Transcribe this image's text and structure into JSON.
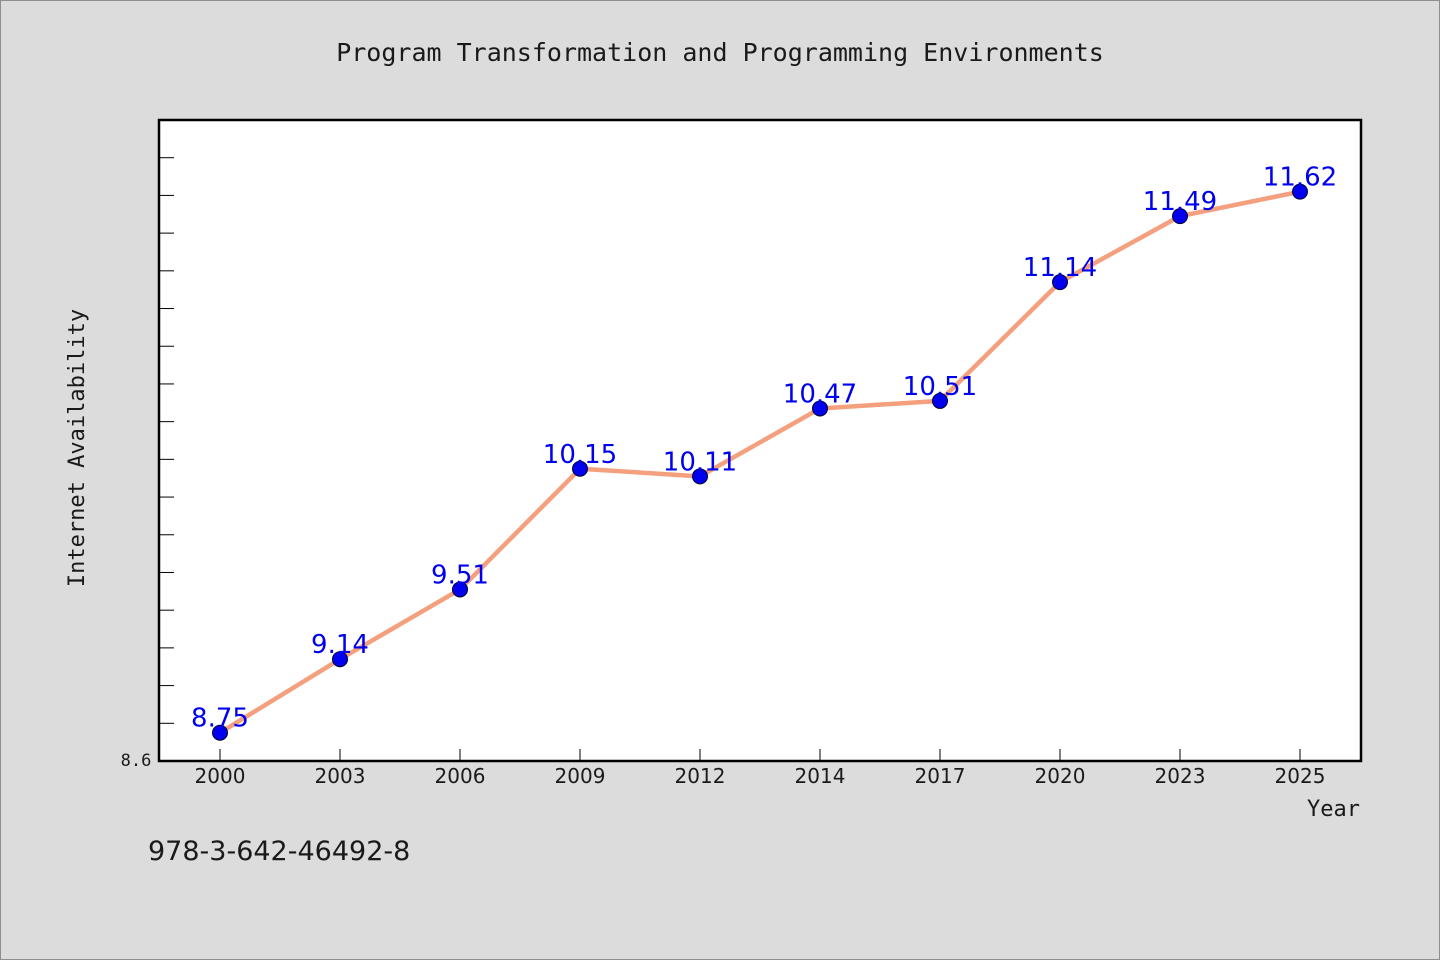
{
  "footer_code": "978-3-642-46492-8",
  "chart_data": {
    "type": "line",
    "title": "Program Transformation and Programming Environments",
    "xlabel": "Year",
    "ylabel": "Internet Availability",
    "categories": [
      "2000",
      "2003",
      "2006",
      "2009",
      "2012",
      "2014",
      "2017",
      "2020",
      "2023",
      "2025"
    ],
    "series": [
      {
        "values": [
          8.75,
          9.14,
          9.51,
          10.15,
          10.11,
          10.47,
          10.51,
          11.14,
          11.49,
          11.62
        ],
        "labels": [
          "8.75",
          "9.14",
          "9.51",
          "10.15",
          "10.11",
          "10.47",
          "10.51",
          "11.14",
          "11.49",
          "11.62"
        ],
        "line_color": "#f4a07e",
        "marker_color": "#0000ee"
      }
    ],
    "y_tick_label": "8.6",
    "ylim": [
      8.6,
      12.0
    ],
    "minor_tick_step": 0.2,
    "label_color": "#0000ee",
    "grid": false,
    "legend": "none"
  }
}
